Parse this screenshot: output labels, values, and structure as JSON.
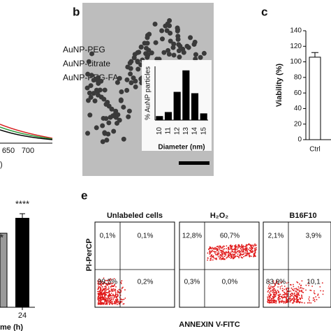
{
  "panel_labels": {
    "b": "b",
    "c": "c",
    "e": "e"
  },
  "panel_a": {
    "legend": [
      "AuNP-PEG",
      "AuNP-citrate",
      "AuNP-PEG-FA"
    ],
    "x_tick_labels": [
      "650",
      "700"
    ],
    "x_label_fragment": ")"
  },
  "panel_d": {
    "annotations": [
      "*",
      "****"
    ],
    "category": "24",
    "x_label_fragment": "me (h)"
  },
  "chart_data": [
    {
      "type": "bar",
      "ylabel": "% AuNP particles",
      "xlabel": "Diameter (nm)",
      "categories": [
        "10",
        "11",
        "12",
        "13",
        "14",
        "15"
      ],
      "values": [
        3,
        6,
        21,
        37,
        20,
        5
      ],
      "ylim": [
        0,
        40
      ],
      "color": "#000000"
    },
    {
      "type": "bar",
      "ylabel": "Viability (%)",
      "categories": [
        "Ctrl"
      ],
      "values": [
        106
      ],
      "errors": [
        6
      ],
      "ylim": [
        0,
        140
      ],
      "yticks": [
        0,
        20,
        40,
        60,
        80,
        100,
        120,
        140
      ],
      "color": "#ffffff"
    }
  ],
  "flow": {
    "ylabel": "PI-PerCP",
    "xlabel": "ANNEXIN V-FITC",
    "panels": [
      {
        "title": "Unlabeled cells",
        "quadrants": [
          "0,1%",
          "0,1%",
          "99,5%",
          "0,2%"
        ]
      },
      {
        "title": "H₂O₂",
        "quadrants": [
          "12,8%",
          "60,7%",
          "0,3%",
          "0,0%"
        ]
      },
      {
        "title": "B16F10",
        "quadrants": [
          "2,1%",
          "3,9%",
          "83,9%",
          "10,1"
        ]
      }
    ]
  }
}
